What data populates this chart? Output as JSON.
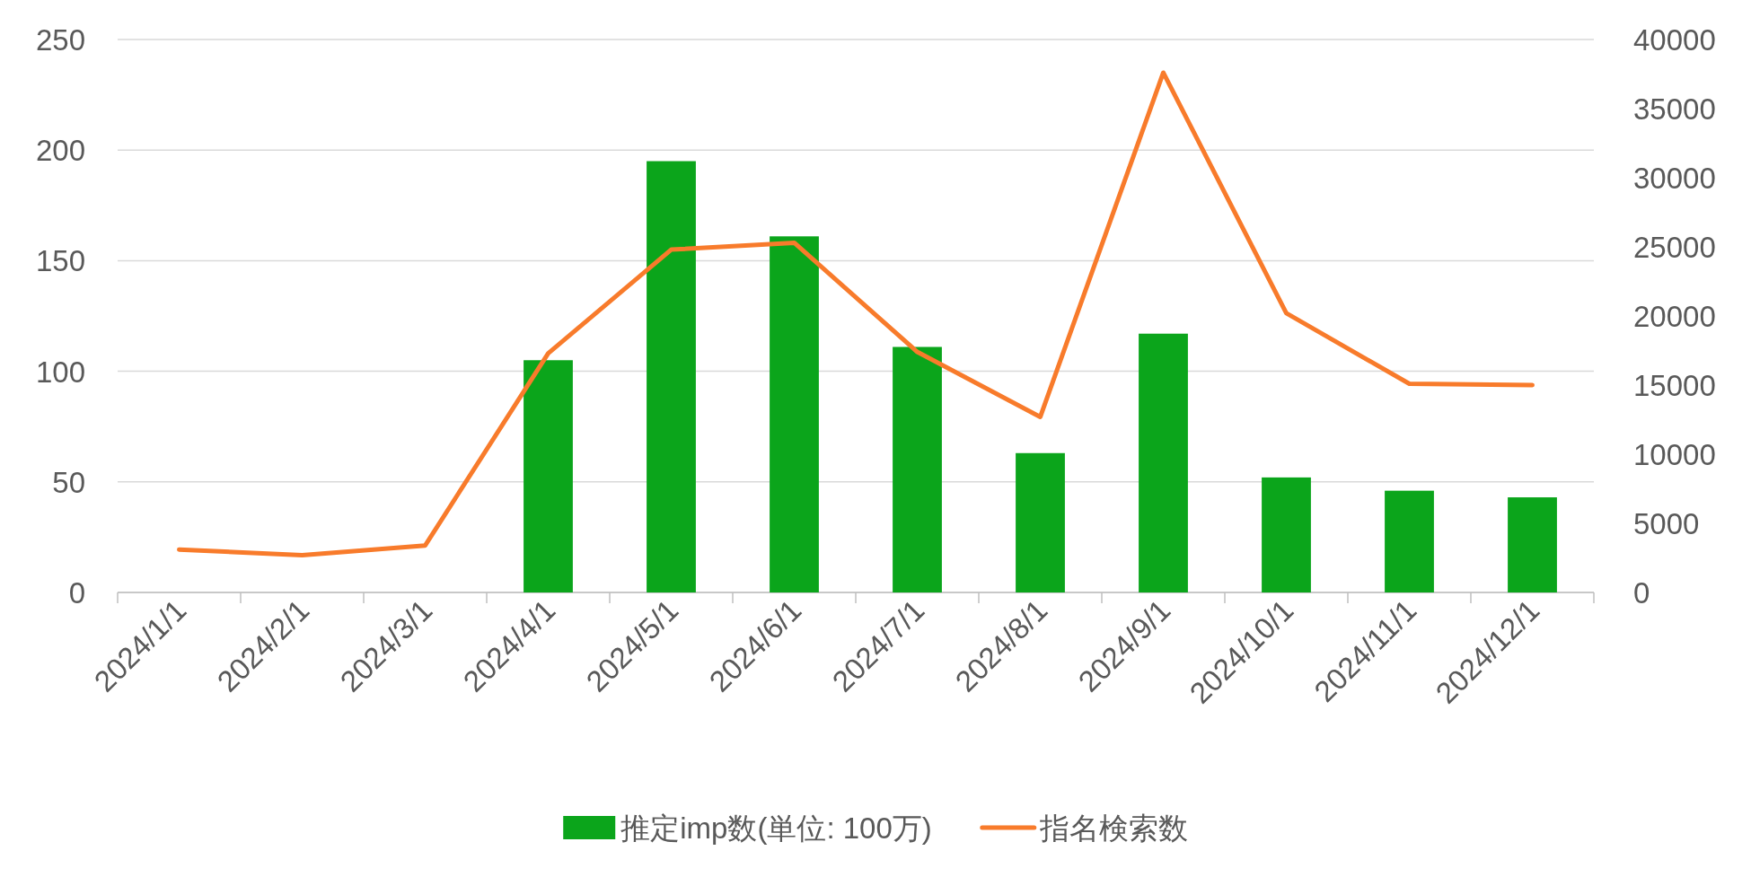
{
  "chart_data": {
    "type": "bar",
    "categories": [
      "2024/1/1",
      "2024/2/1",
      "2024/3/1",
      "2024/4/1",
      "2024/5/1",
      "2024/6/1",
      "2024/7/1",
      "2024/8/1",
      "2024/9/1",
      "2024/10/1",
      "2024/11/1",
      "2024/12/1"
    ],
    "series": [
      {
        "name": "推定imp数(単位: 100万)",
        "color": "#0ba51b",
        "values": [
          null,
          null,
          null,
          105,
          195,
          161,
          111,
          63,
          117,
          52,
          46,
          43
        ]
      },
      {
        "name": "指名検索数",
        "type": "line",
        "axis": "y2",
        "color": "#f87b2b",
        "values": [
          3100,
          2700,
          3400,
          17300,
          24800,
          25300,
          17400,
          12700,
          37600,
          20200,
          15100,
          15000
        ]
      }
    ],
    "ylim": [
      0,
      250
    ],
    "yticks": [
      0,
      50,
      100,
      150,
      200,
      250
    ],
    "y2lim": [
      0,
      40000
    ],
    "y2ticks": [
      0,
      5000,
      10000,
      15000,
      20000,
      25000,
      30000,
      35000,
      40000
    ],
    "grid": "y",
    "legend": "bottom"
  }
}
